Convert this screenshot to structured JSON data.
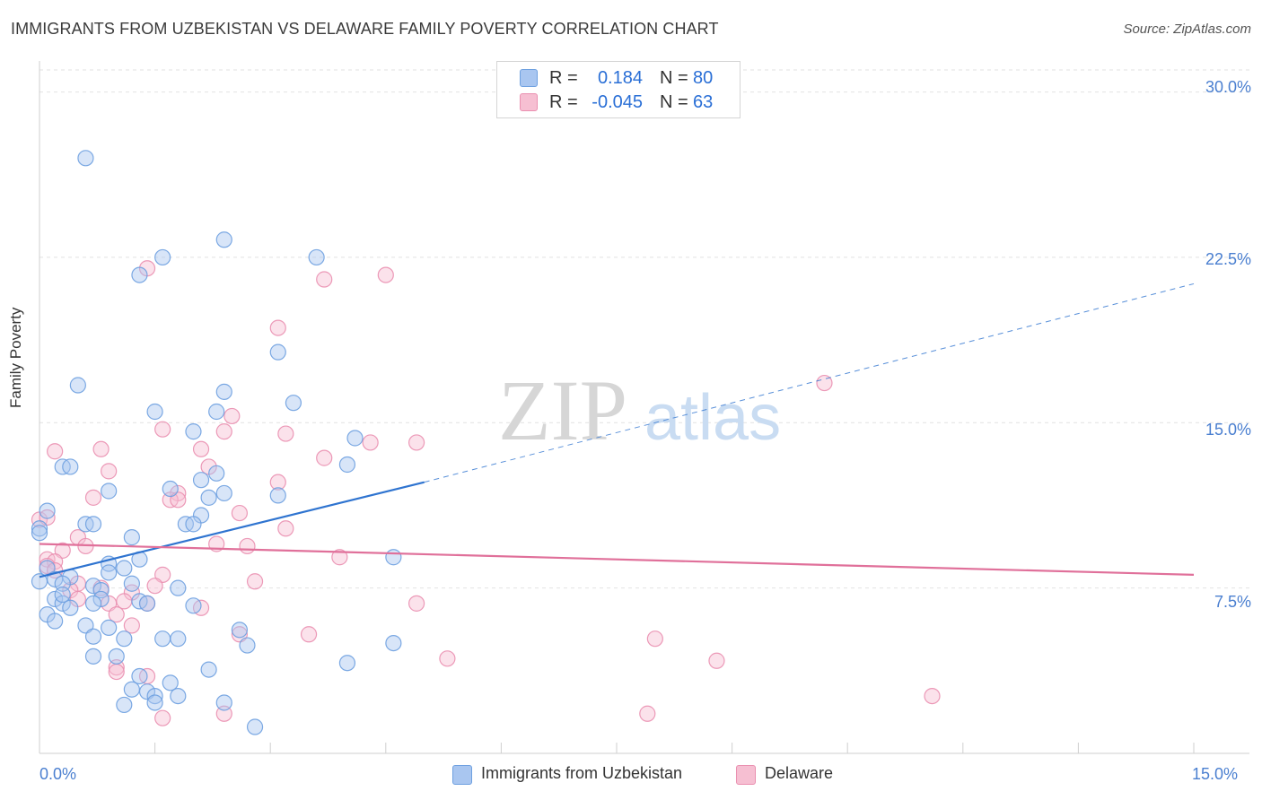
{
  "title": "IMMIGRANTS FROM UZBEKISTAN VS DELAWARE FAMILY POVERTY CORRELATION CHART",
  "source": "Source: ZipAtlas.com",
  "watermark": {
    "zip": "ZIP",
    "atlas": "atlas"
  },
  "colors": {
    "blue": "#6ea0e0",
    "blue_fill": "#a9c6f0",
    "blue_line": "#2f74d0",
    "pink": "#ea8fb0",
    "pink_fill": "#f6bfd2",
    "pink_line": "#e0709a",
    "tick_text": "#4a7fd0"
  },
  "stats": [
    {
      "r_label": "R =",
      "r_value": "0.184",
      "n_label": "N =",
      "n_value": "80",
      "color": "blue"
    },
    {
      "r_label": "R =",
      "r_value": "-0.045",
      "n_label": "N =",
      "n_value": "63",
      "color": "pink"
    }
  ],
  "legend": [
    {
      "label": "Immigrants from Uzbekistan",
      "color": "blue"
    },
    {
      "label": "Delaware",
      "color": "pink"
    }
  ],
  "chart_data": {
    "type": "scatter",
    "title": "IMMIGRANTS FROM UZBEKISTAN VS DELAWARE FAMILY POVERTY CORRELATION CHART",
    "xlabel": "",
    "ylabel": "Family Poverty",
    "xlim": [
      0,
      15
    ],
    "ylim": [
      0,
      31
    ],
    "x_tick_labels": [
      "0.0%",
      "15.0%"
    ],
    "y_ticks": [
      7.5,
      15.0,
      22.5,
      30.0
    ],
    "y_tick_labels": [
      "7.5%",
      "15.0%",
      "22.5%",
      "30.0%"
    ],
    "grid": true,
    "legend_position": "bottom-center",
    "series": [
      {
        "name": "Immigrants from Uzbekistan",
        "color": "blue",
        "trend": {
          "x": [
            0.0,
            5.0
          ],
          "y": [
            8.0,
            12.3
          ],
          "extended_to": [
            15.0,
            21.3
          ]
        },
        "points": [
          [
            0.6,
            27.0
          ],
          [
            1.6,
            22.5
          ],
          [
            1.3,
            21.7
          ],
          [
            2.4,
            23.3
          ],
          [
            3.6,
            22.5
          ],
          [
            3.1,
            18.2
          ],
          [
            0.5,
            16.7
          ],
          [
            2.4,
            16.4
          ],
          [
            3.3,
            15.9
          ],
          [
            1.5,
            15.5
          ],
          [
            2.3,
            15.5
          ],
          [
            2.0,
            14.6
          ],
          [
            4.1,
            14.3
          ],
          [
            4.0,
            13.1
          ],
          [
            0.3,
            13.0
          ],
          [
            0.4,
            13.0
          ],
          [
            2.3,
            12.7
          ],
          [
            0.9,
            11.9
          ],
          [
            1.7,
            12.0
          ],
          [
            2.4,
            11.8
          ],
          [
            3.1,
            11.7
          ],
          [
            2.2,
            11.6
          ],
          [
            0.1,
            11.0
          ],
          [
            2.1,
            10.8
          ],
          [
            0.6,
            10.4
          ],
          [
            0.7,
            10.4
          ],
          [
            1.9,
            10.4
          ],
          [
            2.0,
            10.4
          ],
          [
            0.0,
            10.2
          ],
          [
            0.0,
            10.0
          ],
          [
            1.2,
            9.8
          ],
          [
            4.6,
            8.9
          ],
          [
            1.3,
            8.8
          ],
          [
            0.9,
            8.6
          ],
          [
            1.1,
            8.4
          ],
          [
            0.9,
            8.2
          ],
          [
            0.1,
            8.4
          ],
          [
            0.0,
            7.8
          ],
          [
            0.2,
            7.9
          ],
          [
            0.4,
            8.0
          ],
          [
            0.3,
            7.7
          ],
          [
            1.2,
            7.7
          ],
          [
            0.7,
            7.6
          ],
          [
            0.8,
            7.4
          ],
          [
            1.8,
            7.5
          ],
          [
            0.8,
            7.0
          ],
          [
            0.7,
            6.8
          ],
          [
            1.3,
            6.9
          ],
          [
            0.2,
            7.0
          ],
          [
            0.3,
            6.8
          ],
          [
            0.4,
            6.6
          ],
          [
            2.0,
            6.7
          ],
          [
            0.1,
            6.3
          ],
          [
            0.2,
            6.0
          ],
          [
            0.6,
            5.8
          ],
          [
            0.9,
            5.7
          ],
          [
            2.6,
            5.6
          ],
          [
            0.7,
            5.3
          ],
          [
            1.1,
            5.2
          ],
          [
            1.6,
            5.2
          ],
          [
            1.8,
            5.2
          ],
          [
            2.7,
            4.9
          ],
          [
            4.6,
            5.0
          ],
          [
            0.7,
            4.4
          ],
          [
            1.0,
            4.4
          ],
          [
            2.2,
            3.8
          ],
          [
            4.0,
            4.1
          ],
          [
            1.3,
            3.5
          ],
          [
            1.7,
            3.2
          ],
          [
            1.2,
            2.9
          ],
          [
            1.4,
            2.8
          ],
          [
            1.5,
            2.6
          ],
          [
            1.8,
            2.6
          ],
          [
            1.5,
            2.3
          ],
          [
            2.4,
            2.3
          ],
          [
            1.1,
            2.2
          ],
          [
            2.8,
            1.2
          ],
          [
            0.3,
            7.2
          ],
          [
            1.4,
            6.8
          ],
          [
            2.1,
            12.4
          ]
        ]
      },
      {
        "name": "Delaware",
        "color": "pink",
        "trend": {
          "x": [
            0.0,
            15.0
          ],
          "y": [
            9.5,
            8.1
          ]
        },
        "points": [
          [
            1.4,
            22.0
          ],
          [
            3.7,
            21.5
          ],
          [
            4.5,
            21.7
          ],
          [
            3.1,
            19.3
          ],
          [
            10.2,
            16.8
          ],
          [
            1.6,
            14.7
          ],
          [
            2.5,
            15.3
          ],
          [
            2.4,
            14.6
          ],
          [
            3.2,
            14.5
          ],
          [
            4.3,
            14.1
          ],
          [
            4.9,
            14.1
          ],
          [
            0.2,
            13.7
          ],
          [
            0.8,
            13.8
          ],
          [
            2.1,
            13.8
          ],
          [
            3.7,
            13.4
          ],
          [
            2.2,
            13.0
          ],
          [
            0.9,
            12.8
          ],
          [
            3.1,
            12.3
          ],
          [
            1.8,
            11.8
          ],
          [
            0.7,
            11.6
          ],
          [
            1.7,
            11.5
          ],
          [
            1.8,
            11.5
          ],
          [
            2.6,
            10.9
          ],
          [
            0.0,
            10.6
          ],
          [
            0.1,
            10.7
          ],
          [
            3.2,
            10.2
          ],
          [
            0.5,
            9.8
          ],
          [
            2.3,
            9.5
          ],
          [
            2.7,
            9.4
          ],
          [
            0.6,
            9.4
          ],
          [
            0.3,
            9.2
          ],
          [
            3.9,
            8.9
          ],
          [
            0.1,
            8.8
          ],
          [
            0.2,
            8.7
          ],
          [
            0.1,
            8.5
          ],
          [
            0.2,
            8.3
          ],
          [
            1.6,
            8.1
          ],
          [
            0.5,
            7.7
          ],
          [
            1.5,
            7.6
          ],
          [
            2.8,
            7.8
          ],
          [
            0.4,
            7.4
          ],
          [
            1.2,
            7.3
          ],
          [
            0.8,
            7.5
          ],
          [
            0.5,
            7.0
          ],
          [
            1.1,
            6.9
          ],
          [
            1.4,
            6.8
          ],
          [
            0.9,
            6.8
          ],
          [
            2.1,
            6.6
          ],
          [
            4.9,
            6.8
          ],
          [
            1.0,
            6.3
          ],
          [
            1.2,
            5.8
          ],
          [
            2.6,
            5.4
          ],
          [
            3.5,
            5.4
          ],
          [
            8.0,
            5.2
          ],
          [
            5.3,
            4.3
          ],
          [
            8.8,
            4.2
          ],
          [
            1.0,
            3.9
          ],
          [
            1.0,
            3.7
          ],
          [
            1.4,
            3.5
          ],
          [
            11.6,
            2.6
          ],
          [
            7.9,
            1.8
          ],
          [
            2.4,
            1.8
          ],
          [
            1.6,
            1.6
          ]
        ]
      }
    ]
  }
}
